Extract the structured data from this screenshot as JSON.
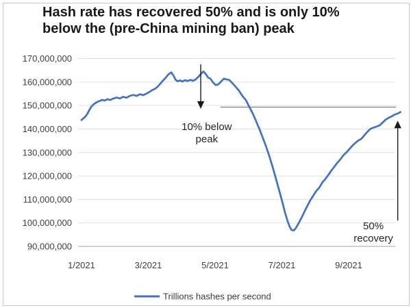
{
  "title": {
    "line1": "Hash rate has recovered 50% and is only 10%",
    "line2": "below the (pre-China mining ban) peak"
  },
  "colors": {
    "series_blue": "#4472C4",
    "grid": "#e0e0e0",
    "axis": "#a6a6a6",
    "annotation_black": "#1a1a1a",
    "reference_gray": "#808080",
    "frame_border": "#c9c9c9"
  },
  "legend": {
    "label": "Trillions hashes per second"
  },
  "chart_data": {
    "type": "line",
    "title": "Hash rate has recovered 50% and is only 10% below the (pre-China mining ban) peak",
    "xlabel": "",
    "ylabel": "",
    "legend_position": "bottom",
    "grid": "horizontal",
    "x_axis": {
      "unit": "month of 2021 (decimal months since 1/2021)",
      "tick_months": [
        0,
        2,
        4,
        6,
        8
      ],
      "tick_labels": [
        "1/2021",
        "3/2021",
        "5/2021",
        "7/2021",
        "9/2021"
      ]
    },
    "y_axis": {
      "min": 90000000,
      "max": 170000000,
      "tick_step": 10000000,
      "tick_values": [
        90000000,
        100000000,
        110000000,
        120000000,
        130000000,
        140000000,
        150000000,
        160000000,
        170000000
      ],
      "tick_labels": [
        "90,000,000",
        "100,000,000",
        "110,000,000",
        "120,000,000",
        "130,000,000",
        "140,000,000",
        "150,000,000",
        "160,000,000",
        "170,000,000"
      ]
    },
    "series": [
      {
        "name": "Trillions hashes per second",
        "color": "#4472C4",
        "points": [
          [
            0.0,
            143800000
          ],
          [
            0.06,
            144600000
          ],
          [
            0.12,
            145300000
          ],
          [
            0.18,
            146600000
          ],
          [
            0.24,
            148200000
          ],
          [
            0.3,
            149600000
          ],
          [
            0.38,
            150700000
          ],
          [
            0.46,
            151400000
          ],
          [
            0.54,
            151900000
          ],
          [
            0.62,
            152400000
          ],
          [
            0.7,
            152100000
          ],
          [
            0.78,
            152700000
          ],
          [
            0.86,
            152300000
          ],
          [
            0.94,
            152900000
          ],
          [
            1.05,
            153400000
          ],
          [
            1.15,
            153000000
          ],
          [
            1.25,
            153700000
          ],
          [
            1.35,
            153300000
          ],
          [
            1.45,
            154100000
          ],
          [
            1.55,
            154500000
          ],
          [
            1.65,
            154100000
          ],
          [
            1.75,
            154800000
          ],
          [
            1.85,
            154400000
          ],
          [
            1.95,
            155100000
          ],
          [
            2.05,
            155900000
          ],
          [
            2.12,
            156600000
          ],
          [
            2.2,
            157100000
          ],
          [
            2.28,
            158000000
          ],
          [
            2.36,
            159300000
          ],
          [
            2.44,
            160600000
          ],
          [
            2.52,
            161800000
          ],
          [
            2.6,
            163200000
          ],
          [
            2.69,
            164100000
          ],
          [
            2.76,
            162600000
          ],
          [
            2.82,
            160900000
          ],
          [
            2.88,
            160300000
          ],
          [
            2.95,
            160700000
          ],
          [
            3.02,
            160200000
          ],
          [
            3.1,
            160800000
          ],
          [
            3.18,
            160400000
          ],
          [
            3.26,
            160900000
          ],
          [
            3.34,
            160500000
          ],
          [
            3.42,
            161100000
          ],
          [
            3.5,
            162200000
          ],
          [
            3.58,
            163500000
          ],
          [
            3.65,
            164500000
          ],
          [
            3.72,
            163400000
          ],
          [
            3.79,
            161900000
          ],
          [
            3.86,
            161400000
          ],
          [
            3.94,
            159800000
          ],
          [
            4.02,
            158700000
          ],
          [
            4.1,
            159000000
          ],
          [
            4.18,
            160200000
          ],
          [
            4.26,
            161400000
          ],
          [
            4.34,
            161100000
          ],
          [
            4.42,
            160900000
          ],
          [
            4.52,
            159500000
          ],
          [
            4.62,
            157900000
          ],
          [
            4.72,
            156200000
          ],
          [
            4.82,
            154000000
          ],
          [
            4.92,
            152300000
          ],
          [
            5.02,
            149600000
          ],
          [
            5.12,
            146800000
          ],
          [
            5.22,
            143600000
          ],
          [
            5.32,
            140200000
          ],
          [
            5.42,
            136600000
          ],
          [
            5.52,
            132800000
          ],
          [
            5.62,
            128600000
          ],
          [
            5.72,
            124000000
          ],
          [
            5.82,
            119000000
          ],
          [
            5.92,
            113800000
          ],
          [
            6.02,
            108500000
          ],
          [
            6.1,
            104100000
          ],
          [
            6.17,
            100800000
          ],
          [
            6.23,
            98500000
          ],
          [
            6.29,
            97000000
          ],
          [
            6.35,
            96800000
          ],
          [
            6.41,
            97600000
          ],
          [
            6.49,
            99600000
          ],
          [
            6.58,
            102000000
          ],
          [
            6.67,
            104600000
          ],
          [
            6.76,
            107200000
          ],
          [
            6.85,
            109600000
          ],
          [
            6.94,
            111600000
          ],
          [
            7.03,
            113600000
          ],
          [
            7.12,
            115000000
          ],
          [
            7.21,
            117200000
          ],
          [
            7.3,
            118700000
          ],
          [
            7.39,
            120400000
          ],
          [
            7.48,
            122300000
          ],
          [
            7.57,
            123900000
          ],
          [
            7.66,
            125600000
          ],
          [
            7.75,
            127000000
          ],
          [
            7.84,
            128800000
          ],
          [
            7.93,
            130000000
          ],
          [
            8.02,
            131400000
          ],
          [
            8.11,
            132900000
          ],
          [
            8.2,
            134100000
          ],
          [
            8.29,
            135100000
          ],
          [
            8.38,
            135800000
          ],
          [
            8.47,
            137300000
          ],
          [
            8.56,
            138800000
          ],
          [
            8.65,
            140000000
          ],
          [
            8.74,
            140600000
          ],
          [
            8.83,
            141000000
          ],
          [
            8.92,
            141500000
          ],
          [
            9.01,
            142600000
          ],
          [
            9.1,
            143900000
          ],
          [
            9.19,
            144700000
          ],
          [
            9.28,
            145300000
          ],
          [
            9.37,
            146100000
          ],
          [
            9.46,
            146500000
          ],
          [
            9.55,
            147200000
          ]
        ]
      }
    ],
    "annotations": {
      "down_arrow": {
        "x_month": 3.57,
        "value_from": 167500000,
        "value_to": 148600000
      },
      "below_peak_label": {
        "x_month": 3.75,
        "value": 138500000,
        "lines": [
          "10% below",
          "peak"
        ]
      },
      "ref_line": {
        "value": 149300000,
        "x_from_month": 4.16,
        "x_to_month": 9.42
      },
      "up_arrow": {
        "x_month": 9.47,
        "value_from": 101000000,
        "value_to": 143500000
      },
      "recovery_label": {
        "x_month": 8.74,
        "value": 96200000,
        "lines": [
          "50%",
          "recovery"
        ]
      }
    }
  }
}
